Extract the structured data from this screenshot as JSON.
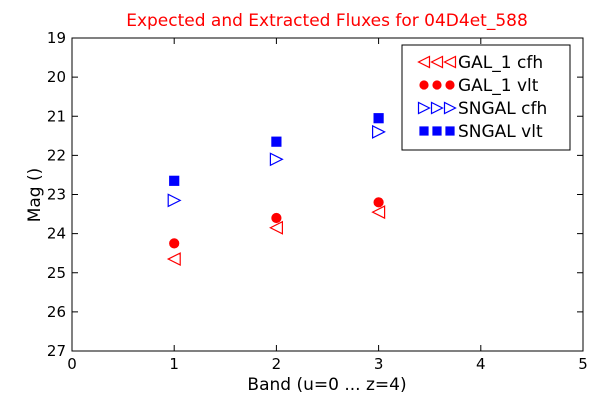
{
  "chart_data": {
    "type": "scatter",
    "title": "Expected and Extracted Fluxes for 04D4et_588",
    "xlabel": "Band (u=0 ... z=4)",
    "ylabel": "Mag ()",
    "xlim": [
      0,
      5
    ],
    "ylim": [
      27,
      19
    ],
    "y_inverted": true,
    "xticks": [
      "0",
      "1",
      "2",
      "3",
      "4",
      "5"
    ],
    "yticks": [
      "19",
      "20",
      "21",
      "22",
      "23",
      "24",
      "25",
      "26",
      "27"
    ],
    "grid": false,
    "legend_position": "top-right",
    "series": [
      {
        "name": "GAL_1 cfh",
        "marker": "triangle-left",
        "color": "#ff0000",
        "filled": false,
        "x": [
          1,
          2,
          3
        ],
        "y": [
          24.65,
          23.85,
          23.45
        ]
      },
      {
        "name": "GAL_1 vlt",
        "marker": "circle",
        "color": "#ff0000",
        "filled": true,
        "x": [
          1,
          2,
          3
        ],
        "y": [
          24.25,
          23.6,
          23.2
        ]
      },
      {
        "name": "SNGAL cfh",
        "marker": "triangle-right",
        "color": "#0000ff",
        "filled": false,
        "x": [
          1,
          2,
          3
        ],
        "y": [
          23.15,
          22.1,
          21.4
        ]
      },
      {
        "name": "SNGAL vlt",
        "marker": "square",
        "color": "#0000ff",
        "filled": true,
        "x": [
          1,
          2,
          3
        ],
        "y": [
          22.65,
          21.65,
          21.05
        ]
      }
    ]
  }
}
